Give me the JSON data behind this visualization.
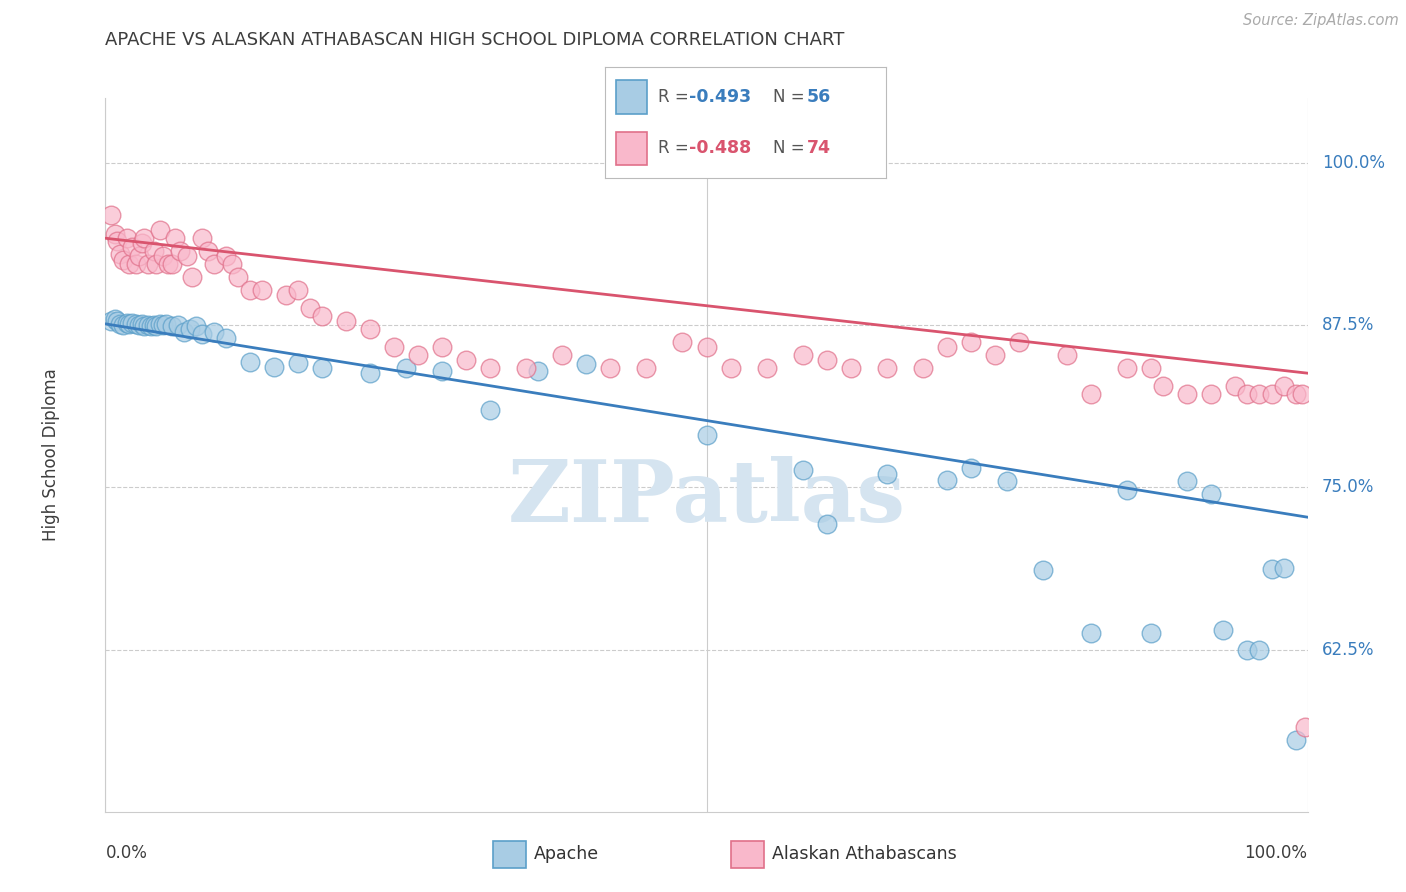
{
  "title": "APACHE VS ALASKAN ATHABASCAN HIGH SCHOOL DIPLOMA CORRELATION CHART",
  "source": "Source: ZipAtlas.com",
  "ylabel": "High School Diploma",
  "ytick_labels": [
    "62.5%",
    "75.0%",
    "87.5%",
    "100.0%"
  ],
  "ytick_values": [
    0.625,
    0.75,
    0.875,
    1.0
  ],
  "xlim": [
    0.0,
    1.0
  ],
  "ylim": [
    0.5,
    1.05
  ],
  "legend_apache": "Apache",
  "legend_alaskan": "Alaskan Athabascans",
  "blue_color": "#a8cce4",
  "pink_color": "#f9b8cb",
  "blue_edge_color": "#5b9fc9",
  "pink_edge_color": "#e0708a",
  "blue_line_color": "#3a7dbd",
  "pink_line_color": "#d9546e",
  "title_color": "#3d3d3d",
  "source_color": "#aaaaaa",
  "watermark_color": "#d5e4f0",
  "watermark_text": "ZIPatlas",
  "background_color": "#ffffff",
  "grid_color": "#cccccc",
  "r_blue": "-0.493",
  "n_blue": "56",
  "r_pink": "-0.488",
  "n_pink": "74",
  "blue_x": [
    0.005,
    0.008,
    0.01,
    0.012,
    0.015,
    0.018,
    0.02,
    0.022,
    0.025,
    0.028,
    0.03,
    0.032,
    0.035,
    0.038,
    0.04,
    0.042,
    0.045,
    0.048,
    0.05,
    0.055,
    0.06,
    0.065,
    0.07,
    0.075,
    0.08,
    0.09,
    0.1,
    0.12,
    0.14,
    0.16,
    0.18,
    0.22,
    0.25,
    0.28,
    0.32,
    0.36,
    0.4,
    0.5,
    0.58,
    0.6,
    0.65,
    0.7,
    0.72,
    0.75,
    0.78,
    0.82,
    0.85,
    0.87,
    0.9,
    0.92,
    0.93,
    0.95,
    0.96,
    0.97,
    0.98,
    0.99
  ],
  "blue_y": [
    0.878,
    0.88,
    0.878,
    0.876,
    0.875,
    0.877,
    0.876,
    0.877,
    0.876,
    0.875,
    0.876,
    0.874,
    0.875,
    0.874,
    0.875,
    0.874,
    0.876,
    0.875,
    0.876,
    0.874,
    0.875,
    0.87,
    0.872,
    0.874,
    0.868,
    0.87,
    0.865,
    0.847,
    0.843,
    0.846,
    0.842,
    0.838,
    0.842,
    0.84,
    0.81,
    0.84,
    0.845,
    0.79,
    0.763,
    0.722,
    0.76,
    0.756,
    0.765,
    0.755,
    0.686,
    0.638,
    0.748,
    0.638,
    0.755,
    0.745,
    0.64,
    0.625,
    0.625,
    0.687,
    0.688,
    0.555
  ],
  "pink_x": [
    0.005,
    0.008,
    0.01,
    0.012,
    0.015,
    0.018,
    0.02,
    0.022,
    0.025,
    0.028,
    0.03,
    0.032,
    0.035,
    0.04,
    0.042,
    0.045,
    0.048,
    0.052,
    0.055,
    0.058,
    0.062,
    0.068,
    0.072,
    0.08,
    0.085,
    0.09,
    0.1,
    0.105,
    0.11,
    0.12,
    0.13,
    0.15,
    0.16,
    0.17,
    0.18,
    0.2,
    0.22,
    0.24,
    0.26,
    0.28,
    0.3,
    0.32,
    0.35,
    0.38,
    0.42,
    0.45,
    0.48,
    0.5,
    0.52,
    0.55,
    0.58,
    0.6,
    0.62,
    0.65,
    0.68,
    0.7,
    0.72,
    0.74,
    0.76,
    0.8,
    0.82,
    0.85,
    0.87,
    0.88,
    0.9,
    0.92,
    0.94,
    0.95,
    0.96,
    0.97,
    0.98,
    0.99,
    0.995,
    0.998
  ],
  "pink_y": [
    0.96,
    0.945,
    0.94,
    0.93,
    0.925,
    0.942,
    0.922,
    0.935,
    0.922,
    0.928,
    0.938,
    0.942,
    0.922,
    0.932,
    0.922,
    0.948,
    0.928,
    0.922,
    0.922,
    0.942,
    0.932,
    0.928,
    0.912,
    0.942,
    0.932,
    0.922,
    0.928,
    0.922,
    0.912,
    0.902,
    0.902,
    0.898,
    0.902,
    0.888,
    0.882,
    0.878,
    0.872,
    0.858,
    0.852,
    0.858,
    0.848,
    0.842,
    0.842,
    0.852,
    0.842,
    0.842,
    0.862,
    0.858,
    0.842,
    0.842,
    0.852,
    0.848,
    0.842,
    0.842,
    0.842,
    0.858,
    0.862,
    0.852,
    0.862,
    0.852,
    0.822,
    0.842,
    0.842,
    0.828,
    0.822,
    0.822,
    0.828,
    0.822,
    0.822,
    0.822,
    0.828,
    0.822,
    0.822,
    0.565
  ]
}
